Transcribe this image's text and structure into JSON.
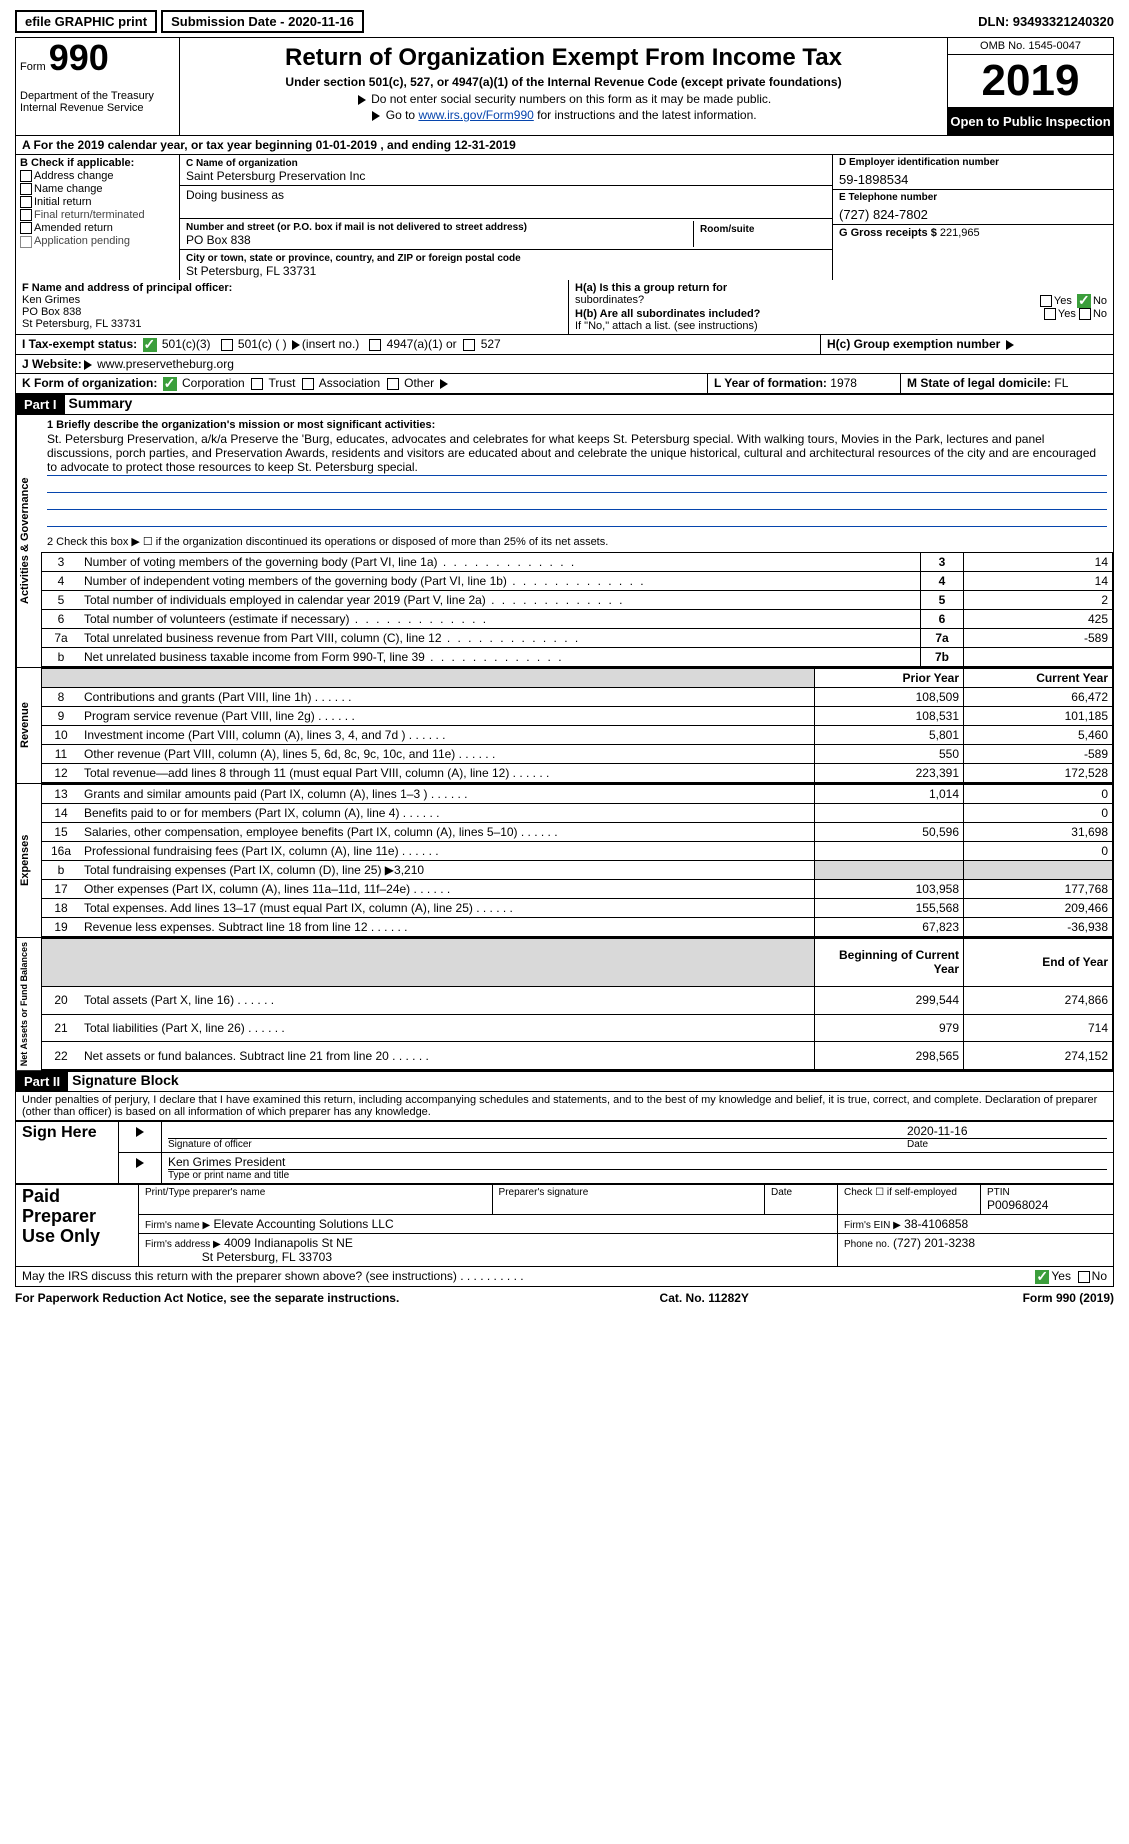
{
  "top": {
    "efile": "efile GRAPHIC print",
    "submission": "Submission Date - 2020-11-16",
    "dln": "DLN: 93493321240320"
  },
  "header": {
    "form_label": "Form",
    "form_number": "990",
    "dept": "Department of the Treasury\nInternal Revenue Service",
    "title": "Return of Organization Exempt From Income Tax",
    "sub": "Under section 501(c), 527, or 4947(a)(1) of the Internal Revenue Code (except private foundations)",
    "note1": "Do not enter social security numbers on this form as it may be made public.",
    "note2_prefix": "Go to ",
    "note2_link": "www.irs.gov/Form990",
    "note2_suffix": " for instructions and the latest information.",
    "omb": "OMB No. 1545-0047",
    "year": "2019",
    "open": "Open to Public Inspection"
  },
  "row_a": "A For the 2019 calendar year, or tax year beginning 01-01-2019    , and ending 12-31-2019",
  "b": {
    "hdr": "B Check if applicable:",
    "items": [
      "Address change",
      "Name change",
      "Initial return",
      "Final return/terminated",
      "Amended return",
      "Application pending"
    ]
  },
  "c": {
    "name_lbl": "C Name of organization",
    "name": "Saint Petersburg Preservation Inc",
    "dba_lbl": "Doing business as",
    "dba": "",
    "street_lbl": "Number and street (or P.O. box if mail is not delivered to street address)",
    "street": "PO Box 838",
    "room_lbl": "Room/suite",
    "city_lbl": "City or town, state or province, country, and ZIP or foreign postal code",
    "city": "St Petersburg, FL  33731"
  },
  "d": {
    "ein_lbl": "D Employer identification number",
    "ein": "59-1898534",
    "phone_lbl": "E Telephone number",
    "phone": "(727) 824-7802",
    "gross_lbl": "G Gross receipts $",
    "gross": "221,965"
  },
  "f": {
    "lbl": "F  Name and address of principal officer:",
    "name": "Ken Grimes",
    "street": "PO Box 838",
    "city": "St Petersburg, FL  33731"
  },
  "h": {
    "a_lbl": "H(a)  Is this a group return for",
    "a_sub": "subordinates?",
    "b_lbl": "H(b)  Are all subordinates included?",
    "b_note": "If \"No,\" attach a list. (see instructions)",
    "c_lbl": "H(c)  Group exemption number",
    "yes": "Yes",
    "no": "No"
  },
  "i": {
    "lbl": "I  Tax-exempt status:",
    "opts": [
      "501(c)(3)",
      "501(c) (  )",
      "(insert no.)",
      "4947(a)(1) or",
      "527"
    ]
  },
  "j": {
    "lbl": "J  Website:",
    "val": " www.preservetheburg.org"
  },
  "k": {
    "lbl": "K Form of organization:",
    "opts": [
      "Corporation",
      "Trust",
      "Association",
      "Other"
    ]
  },
  "l": {
    "lbl": "L Year of formation:",
    "val": "1978"
  },
  "m": {
    "lbl": "M State of legal domicile:",
    "val": "FL"
  },
  "part1": {
    "num": "Part I",
    "title": "Summary",
    "q1_lbl": "1  Briefly describe the organization's mission or most significant activities:",
    "mission": "St. Petersburg Preservation, a/k/a Preserve the 'Burg, educates, advocates and celebrates for what keeps St. Petersburg special. With walking tours, Movies in the Park, lectures and panel discussions, porch parties, and Preservation Awards, residents and visitors are educated about and celebrate the unique historical, cultural and architectural resources of the city and are encouraged to advocate to protect those resources to keep St. Petersburg special.",
    "q2": "2  Check this box ▶ ☐ if the organization discontinued its operations or disposed of more than 25% of its net assets.",
    "tab_gov": "Activities & Governance",
    "tab_rev": "Revenue",
    "tab_exp": "Expenses",
    "tab_net": "Net Assets or Fund Balances",
    "gov_rows": [
      {
        "n": "3",
        "d": "Number of voting members of the governing body (Part VI, line 1a)",
        "box": "3",
        "v": "14"
      },
      {
        "n": "4",
        "d": "Number of independent voting members of the governing body (Part VI, line 1b)",
        "box": "4",
        "v": "14"
      },
      {
        "n": "5",
        "d": "Total number of individuals employed in calendar year 2019 (Part V, line 2a)",
        "box": "5",
        "v": "2"
      },
      {
        "n": "6",
        "d": "Total number of volunteers (estimate if necessary)",
        "box": "6",
        "v": "425"
      },
      {
        "n": "7a",
        "d": "Total unrelated business revenue from Part VIII, column (C), line 12",
        "box": "7a",
        "v": "-589"
      },
      {
        "n": "b",
        "d": "Net unrelated business taxable income from Form 990-T, line 39",
        "box": "7b",
        "v": ""
      }
    ],
    "py_hdr": "Prior Year",
    "cy_hdr": "Current Year",
    "rev_rows": [
      {
        "n": "8",
        "d": "Contributions and grants (Part VIII, line 1h)",
        "py": "108,509",
        "cy": "66,472"
      },
      {
        "n": "9",
        "d": "Program service revenue (Part VIII, line 2g)",
        "py": "108,531",
        "cy": "101,185"
      },
      {
        "n": "10",
        "d": "Investment income (Part VIII, column (A), lines 3, 4, and 7d )",
        "py": "5,801",
        "cy": "5,460"
      },
      {
        "n": "11",
        "d": "Other revenue (Part VIII, column (A), lines 5, 6d, 8c, 9c, 10c, and 11e)",
        "py": "550",
        "cy": "-589"
      },
      {
        "n": "12",
        "d": "Total revenue—add lines 8 through 11 (must equal Part VIII, column (A), line 12)",
        "py": "223,391",
        "cy": "172,528"
      }
    ],
    "exp_rows": [
      {
        "n": "13",
        "d": "Grants and similar amounts paid (Part IX, column (A), lines 1–3 )",
        "py": "1,014",
        "cy": "0"
      },
      {
        "n": "14",
        "d": "Benefits paid to or for members (Part IX, column (A), line 4)",
        "py": "",
        "cy": "0"
      },
      {
        "n": "15",
        "d": "Salaries, other compensation, employee benefits (Part IX, column (A), lines 5–10)",
        "py": "50,596",
        "cy": "31,698"
      },
      {
        "n": "16a",
        "d": "Professional fundraising fees (Part IX, column (A), line 11e)",
        "py": "",
        "cy": "0"
      },
      {
        "n": "b",
        "d": "Total fundraising expenses (Part IX, column (D), line 25) ▶3,210",
        "py": null,
        "cy": null
      },
      {
        "n": "17",
        "d": "Other expenses (Part IX, column (A), lines 11a–11d, 11f–24e)",
        "py": "103,958",
        "cy": "177,768"
      },
      {
        "n": "18",
        "d": "Total expenses. Add lines 13–17 (must equal Part IX, column (A), line 25)",
        "py": "155,568",
        "cy": "209,466"
      },
      {
        "n": "19",
        "d": "Revenue less expenses. Subtract line 18 from line 12",
        "py": "67,823",
        "cy": "-36,938"
      }
    ],
    "boy_hdr": "Beginning of Current Year",
    "eoy_hdr": "End of Year",
    "net_rows": [
      {
        "n": "20",
        "d": "Total assets (Part X, line 16)",
        "py": "299,544",
        "cy": "274,866"
      },
      {
        "n": "21",
        "d": "Total liabilities (Part X, line 26)",
        "py": "979",
        "cy": "714"
      },
      {
        "n": "22",
        "d": "Net assets or fund balances. Subtract line 21 from line 20",
        "py": "298,565",
        "cy": "274,152"
      }
    ]
  },
  "part2": {
    "num": "Part II",
    "title": "Signature Block",
    "decl": "Under penalties of perjury, I declare that I have examined this return, including accompanying schedules and statements, and to the best of my knowledge and belief, it is true, correct, and complete. Declaration of preparer (other than officer) is based on all information of which preparer has any knowledge.",
    "sign_here": "Sign Here",
    "sig_officer": "Signature of officer",
    "sig_date": "Date",
    "officer_date": "2020-11-16",
    "officer_name": "Ken Grimes  President",
    "type_name": "Type or print name and title",
    "paid": "Paid Preparer Use Only",
    "pp_name_lbl": "Print/Type preparer's name",
    "pp_sig_lbl": "Preparer's signature",
    "pp_date_lbl": "Date",
    "pp_check": "Check ☐ if self-employed",
    "ptin_lbl": "PTIN",
    "ptin": "P00968024",
    "firm_name_lbl": "Firm's name   ▶",
    "firm_name": "Elevate Accounting Solutions LLC",
    "firm_ein_lbl": "Firm's EIN ▶",
    "firm_ein": "38-4106858",
    "firm_addr_lbl": "Firm's address ▶",
    "firm_addr1": "4009 Indianapolis St NE",
    "firm_addr2": "St Petersburg, FL  33703",
    "firm_phone_lbl": "Phone no.",
    "firm_phone": "(727) 201-3238",
    "may_irs": "May the IRS discuss this return with the preparer shown above? (see instructions)"
  },
  "footer": {
    "left": "For Paperwork Reduction Act Notice, see the separate instructions.",
    "center": "Cat. No. 11282Y",
    "right_a": "Form ",
    "right_b": "990",
    "right_c": " (2019)"
  }
}
